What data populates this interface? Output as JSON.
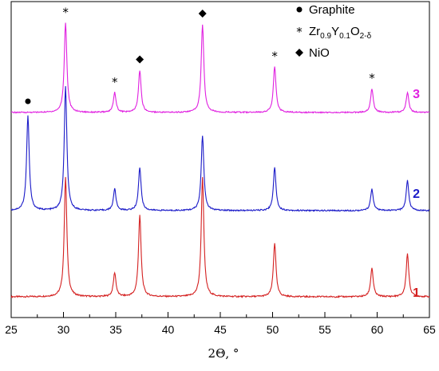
{
  "chart_data": {
    "type": "line",
    "xlabel": "2Θ, °",
    "ylabel": "",
    "xlim": [
      25,
      65
    ],
    "x_ticks": [
      "25",
      "30",
      "35",
      "40",
      "45",
      "50",
      "55",
      "60",
      "65"
    ],
    "grid": false,
    "legend_position": "top-right",
    "legend": [
      {
        "symbol": "circle",
        "text": "Graphite"
      },
      {
        "symbol": "star",
        "text_parts": [
          "Zr",
          "0.9",
          "Y",
          "0.1",
          "O",
          "2-δ"
        ]
      },
      {
        "symbol": "diamond",
        "text": "NiO"
      }
    ],
    "series": [
      {
        "name": "1",
        "color": "#d42020",
        "baseline": 0.0,
        "peaks": [
          {
            "x": 30.2,
            "height": 1.0
          },
          {
            "x": 34.9,
            "height": 0.2
          },
          {
            "x": 37.3,
            "height": 0.68
          },
          {
            "x": 43.3,
            "height": 1.0
          },
          {
            "x": 50.2,
            "height": 0.45
          },
          {
            "x": 59.5,
            "height": 0.24
          },
          {
            "x": 62.9,
            "height": 0.36
          }
        ]
      },
      {
        "name": "2",
        "color": "#1a1ac8",
        "baseline": 0.0,
        "peaks": [
          {
            "x": 26.6,
            "height": 0.88
          },
          {
            "x": 30.2,
            "height": 1.15
          },
          {
            "x": 34.9,
            "height": 0.2
          },
          {
            "x": 37.3,
            "height": 0.4
          },
          {
            "x": 43.3,
            "height": 0.7
          },
          {
            "x": 50.2,
            "height": 0.4
          },
          {
            "x": 59.5,
            "height": 0.2
          },
          {
            "x": 62.9,
            "height": 0.28
          }
        ]
      },
      {
        "name": "3",
        "color": "#e020e0",
        "baseline": 0.0,
        "peaks": [
          {
            "x": 30.2,
            "height": 0.9
          },
          {
            "x": 34.9,
            "height": 0.2
          },
          {
            "x": 37.3,
            "height": 0.42
          },
          {
            "x": 43.3,
            "height": 0.88
          },
          {
            "x": 50.2,
            "height": 0.46
          },
          {
            "x": 59.5,
            "height": 0.24
          },
          {
            "x": 62.9,
            "height": 0.2
          }
        ]
      }
    ],
    "peak_markers": [
      {
        "x": 26.6,
        "symbol": "circle"
      },
      {
        "x": 30.2,
        "symbol": "star"
      },
      {
        "x": 34.9,
        "symbol": "star"
      },
      {
        "x": 37.3,
        "symbol": "diamond"
      },
      {
        "x": 43.3,
        "symbol": "diamond"
      },
      {
        "x": 50.2,
        "symbol": "star"
      },
      {
        "x": 59.5,
        "symbol": "star"
      }
    ]
  }
}
